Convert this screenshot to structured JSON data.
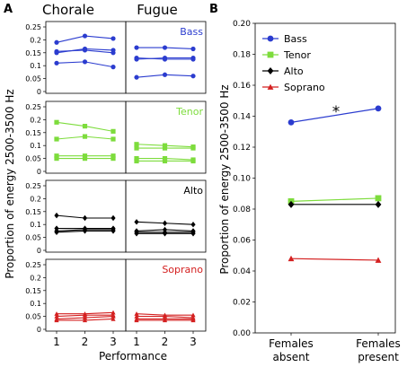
{
  "chart_data": [
    {
      "panel": "A",
      "type": "line",
      "column_titles": [
        "Chorale",
        "Fugue"
      ],
      "xlabel": "Performance",
      "ylabel": "Proportion of energy 2500-3500 Hz",
      "x": [
        1,
        2,
        3
      ],
      "ylim": [
        0,
        0.25
      ],
      "yticks": [
        "0",
        "0.05",
        "0.1",
        "0.15",
        "0.2",
        "0.25"
      ],
      "rows": [
        {
          "name": "Bass",
          "color": "#2b3ccf",
          "marker": "circle",
          "chorale": [
            [
              0.19,
              0.215,
              0.205
            ],
            [
              0.15,
              0.165,
              0.16
            ],
            [
              0.155,
              0.16,
              0.15
            ],
            [
              0.11,
              0.115,
              0.095
            ]
          ],
          "fugue": [
            [
              0.17,
              0.17,
              0.165
            ],
            [
              0.125,
              0.13,
              0.13
            ],
            [
              0.13,
              0.125,
              0.125
            ],
            [
              0.055,
              0.065,
              0.06
            ]
          ]
        },
        {
          "name": "Tenor",
          "color": "#7ddc3c",
          "marker": "square",
          "chorale": [
            [
              0.19,
              0.175,
              0.155
            ],
            [
              0.125,
              0.135,
              0.125
            ],
            [
              0.06,
              0.06,
              0.06
            ],
            [
              0.05,
              0.05,
              0.05
            ]
          ],
          "fugue": [
            [
              0.105,
              0.1,
              0.095
            ],
            [
              0.09,
              0.09,
              0.09
            ],
            [
              0.05,
              0.05,
              0.045
            ],
            [
              0.04,
              0.04,
              0.04
            ]
          ]
        },
        {
          "name": "Alto",
          "color": "#000000",
          "marker": "diamond",
          "chorale": [
            [
              0.135,
              0.125,
              0.125
            ],
            [
              0.085,
              0.085,
              0.085
            ],
            [
              0.075,
              0.08,
              0.08
            ],
            [
              0.07,
              0.075,
              0.075
            ]
          ],
          "fugue": [
            [
              0.11,
              0.105,
              0.1
            ],
            [
              0.075,
              0.08,
              0.075
            ],
            [
              0.07,
              0.07,
              0.07
            ],
            [
              0.065,
              0.065,
              0.065
            ]
          ]
        },
        {
          "name": "Soprano",
          "color": "#d42020",
          "marker": "triangle",
          "chorale": [
            [
              0.06,
              0.06,
              0.065
            ],
            [
              0.05,
              0.055,
              0.055
            ],
            [
              0.04,
              0.045,
              0.05
            ],
            [
              0.035,
              0.035,
              0.04
            ]
          ],
          "fugue": [
            [
              0.06,
              0.055,
              0.055
            ],
            [
              0.05,
              0.05,
              0.045
            ],
            [
              0.04,
              0.04,
              0.04
            ],
            [
              0.035,
              0.035,
              0.035
            ]
          ]
        }
      ]
    },
    {
      "panel": "B",
      "type": "line",
      "ylabel": "Proportion of energy 2500-3500 Hz",
      "categories": [
        "Females absent",
        "Females present"
      ],
      "ylim": [
        0,
        0.2
      ],
      "yticks": [
        "0.00",
        "0.02",
        "0.04",
        "0.06",
        "0.08",
        "0.10",
        "0.12",
        "0.14",
        "0.16",
        "0.18",
        "0.20"
      ],
      "legend_position": "top-left",
      "annotation": "*",
      "series": [
        {
          "name": "Bass",
          "color": "#2b3ccf",
          "marker": "circle",
          "values": [
            0.136,
            0.145
          ]
        },
        {
          "name": "Tenor",
          "color": "#7ddc3c",
          "marker": "square",
          "values": [
            0.085,
            0.087
          ]
        },
        {
          "name": "Alto",
          "color": "#000000",
          "marker": "diamond",
          "values": [
            0.083,
            0.083
          ]
        },
        {
          "name": "Soprano",
          "color": "#d42020",
          "marker": "triangle",
          "values": [
            0.048,
            0.047
          ]
        }
      ]
    }
  ]
}
